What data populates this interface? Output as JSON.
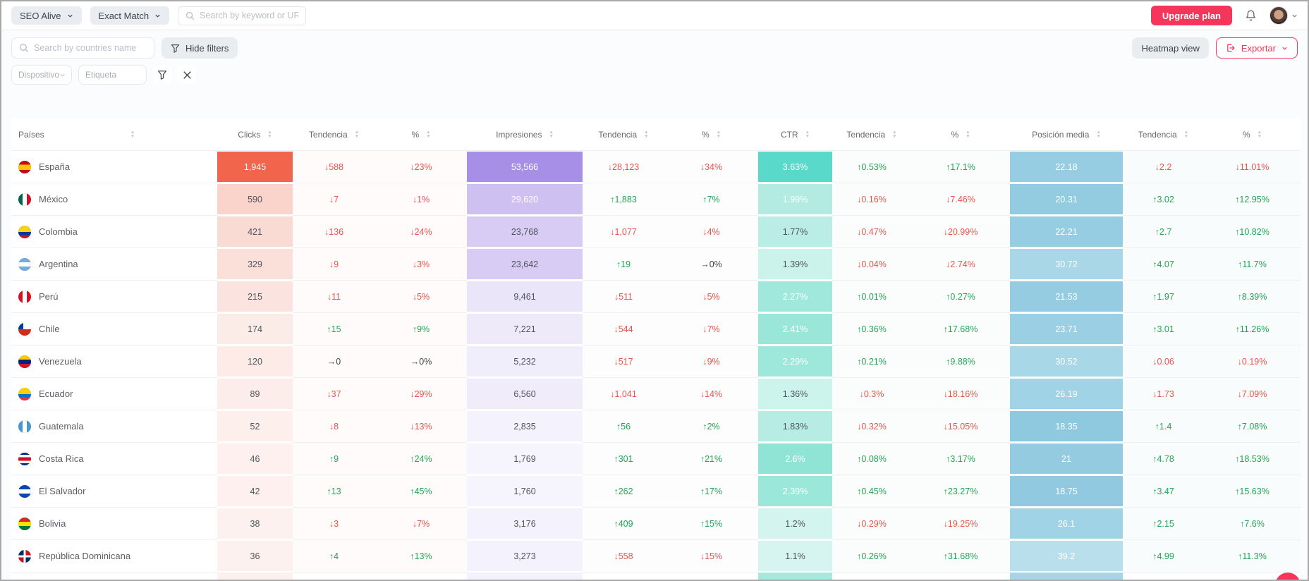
{
  "topbar": {
    "project": {
      "label": "SEO Alive"
    },
    "match_mode": {
      "label": "Exact Match"
    },
    "search": {
      "placeholder": "Search by keyword or URL"
    },
    "upgrade": {
      "label": "Upgrade plan"
    }
  },
  "toolbar": {
    "country_search": {
      "placeholder": "Search by countries name"
    },
    "hide_filters": {
      "label": "Hide filters"
    },
    "heatmap_view": {
      "label": "Heatmap view"
    },
    "export": {
      "label": "Exportar"
    }
  },
  "filters": {
    "device": {
      "placeholder": "Dispositivo"
    },
    "tag": {
      "placeholder": "Etiqueta"
    }
  },
  "colors": {
    "accent": "#f5365c",
    "positive": "#23a455",
    "negative": "#e6554f",
    "neutral": "#3f454b"
  },
  "table": {
    "columns": [
      "Países",
      "Clicks",
      "Tendencia",
      "%",
      "Impresiones",
      "Tendencia",
      "%",
      "CTR",
      "Tendencia",
      "%",
      "Posición media",
      "Tendencia",
      "%"
    ],
    "rows": [
      {
        "country": "España",
        "flag": "es",
        "cells": [
          {
            "t": "1,945",
            "bg": "#f0654b",
            "light": true
          },
          {
            "t": "↓588"
          },
          {
            "t": "↓23%"
          },
          {
            "t": "53,566",
            "bg": "#a78ee7",
            "light": true
          },
          {
            "t": "↓28,123"
          },
          {
            "t": "↓34%"
          },
          {
            "t": "3.63%",
            "bg": "#58d9ca",
            "light": true
          },
          {
            "t": "↑0.53%"
          },
          {
            "t": "↑17.1%"
          },
          {
            "t": "22.18",
            "bg": "#97cde2",
            "light": true
          },
          {
            "t": "↓2.2"
          },
          {
            "t": "↓11.01%"
          }
        ]
      },
      {
        "country": "México",
        "flag": "mx",
        "cells": [
          {
            "t": "590",
            "bg": "#fad3cb"
          },
          {
            "t": "↓7"
          },
          {
            "t": "↓1%"
          },
          {
            "t": "29,620",
            "bg": "#cfc0f2",
            "light": true
          },
          {
            "t": "↑1,883"
          },
          {
            "t": "↑7%"
          },
          {
            "t": "1.99%",
            "bg": "#b3ebe3",
            "light": true
          },
          {
            "t": "↓0.16%"
          },
          {
            "t": "↓7.46%"
          },
          {
            "t": "20.31",
            "bg": "#93cbe1",
            "light": true
          },
          {
            "t": "↑3.02"
          },
          {
            "t": "↑12.95%"
          }
        ]
      },
      {
        "country": "Colombia",
        "flag": "co",
        "cells": [
          {
            "t": "421",
            "bg": "#fadbd4"
          },
          {
            "t": "↓136"
          },
          {
            "t": "↓24%"
          },
          {
            "t": "23,768",
            "bg": "#d8cbf4"
          },
          {
            "t": "↓1,077"
          },
          {
            "t": "↓4%"
          },
          {
            "t": "1.77%",
            "bg": "#baede6"
          },
          {
            "t": "↓0.47%"
          },
          {
            "t": "↓20.99%"
          },
          {
            "t": "22.21",
            "bg": "#97cde2",
            "light": true
          },
          {
            "t": "↑2.7"
          },
          {
            "t": "↑10.82%"
          }
        ]
      },
      {
        "country": "Argentina",
        "flag": "ar",
        "cells": [
          {
            "t": "329",
            "bg": "#fbe0da"
          },
          {
            "t": "↓9"
          },
          {
            "t": "↓3%"
          },
          {
            "t": "23,642",
            "bg": "#d8ccf4"
          },
          {
            "t": "↑19"
          },
          {
            "t": "→0%"
          },
          {
            "t": "1.39%",
            "bg": "#ccf2ec"
          },
          {
            "t": "↓0.04%"
          },
          {
            "t": "↓2.74%"
          },
          {
            "t": "30.72",
            "bg": "#a9d7e8",
            "light": true
          },
          {
            "t": "↑4.07"
          },
          {
            "t": "↑11.7%"
          }
        ]
      },
      {
        "country": "Perú",
        "flag": "pe",
        "cells": [
          {
            "t": "215",
            "bg": "#fbe4df"
          },
          {
            "t": "↓11"
          },
          {
            "t": "↓5%"
          },
          {
            "t": "9,461",
            "bg": "#eae5f9"
          },
          {
            "t": "↓511"
          },
          {
            "t": "↓5%"
          },
          {
            "t": "2.27%",
            "bg": "#9fe8db",
            "light": true
          },
          {
            "t": "↑0.01%"
          },
          {
            "t": "↑0.27%"
          },
          {
            "t": "21.53",
            "bg": "#95cce1",
            "light": true
          },
          {
            "t": "↑1.97"
          },
          {
            "t": "↑8.39%"
          }
        ]
      },
      {
        "country": "Chile",
        "flag": "cl",
        "cells": [
          {
            "t": "174",
            "bg": "#fcece8"
          },
          {
            "t": "↑15"
          },
          {
            "t": "↑9%"
          },
          {
            "t": "7,221",
            "bg": "#eeeafa"
          },
          {
            "t": "↓544"
          },
          {
            "t": "↓7%"
          },
          {
            "t": "2.41%",
            "bg": "#9ae6d9",
            "light": true
          },
          {
            "t": "↑0.36%"
          },
          {
            "t": "↑17.68%"
          },
          {
            "t": "23.71",
            "bg": "#9bd0e4",
            "light": true
          },
          {
            "t": "↑3.01"
          },
          {
            "t": "↑11.26%"
          }
        ]
      },
      {
        "country": "Venezuela",
        "flag": "ve",
        "cells": [
          {
            "t": "120",
            "bg": "#fcebe7"
          },
          {
            "t": "→0"
          },
          {
            "t": "→0%"
          },
          {
            "t": "5,232",
            "bg": "#f1eefb"
          },
          {
            "t": "↓517"
          },
          {
            "t": "↓9%"
          },
          {
            "t": "2.29%",
            "bg": "#9ee7db",
            "light": true
          },
          {
            "t": "↑0.21%"
          },
          {
            "t": "↑9.88%"
          },
          {
            "t": "30.52",
            "bg": "#a8d7e8",
            "light": true
          },
          {
            "t": "↓0.06"
          },
          {
            "t": "↓0.19%"
          }
        ]
      },
      {
        "country": "Ecuador",
        "flag": "ec",
        "cells": [
          {
            "t": "89",
            "bg": "#fcedea"
          },
          {
            "t": "↓37"
          },
          {
            "t": "↓29%"
          },
          {
            "t": "6,560",
            "bg": "#f0ecfa"
          },
          {
            "t": "↓1,041"
          },
          {
            "t": "↓14%"
          },
          {
            "t": "1.36%",
            "bg": "#cdf3ed"
          },
          {
            "t": "↓0.3%"
          },
          {
            "t": "↓18.16%"
          },
          {
            "t": "26.19",
            "bg": "#a0d3e5",
            "light": true
          },
          {
            "t": "↓1.73"
          },
          {
            "t": "↓7.09%"
          }
        ]
      },
      {
        "country": "Guatemala",
        "flag": "gt",
        "cells": [
          {
            "t": "52",
            "bg": "#fdefec"
          },
          {
            "t": "↓8"
          },
          {
            "t": "↓13%"
          },
          {
            "t": "2,835",
            "bg": "#f4f2fc"
          },
          {
            "t": "↑56"
          },
          {
            "t": "↑2%"
          },
          {
            "t": "1.83%",
            "bg": "#b7ece4"
          },
          {
            "t": "↓0.32%"
          },
          {
            "t": "↓15.05%"
          },
          {
            "t": "18.35",
            "bg": "#8fc9df",
            "light": true
          },
          {
            "t": "↑1.4"
          },
          {
            "t": "↑7.08%"
          }
        ]
      },
      {
        "country": "Costa Rica",
        "flag": "cr",
        "cells": [
          {
            "t": "46",
            "bg": "#fdf0ee"
          },
          {
            "t": "↑9"
          },
          {
            "t": "↑24%"
          },
          {
            "t": "1,769",
            "bg": "#f6f4fc"
          },
          {
            "t": "↑301"
          },
          {
            "t": "↑21%"
          },
          {
            "t": "2.6%",
            "bg": "#8fe4d5",
            "light": true
          },
          {
            "t": "↑0.08%"
          },
          {
            "t": "↑3.17%"
          },
          {
            "t": "21",
            "bg": "#94cbe1",
            "light": true
          },
          {
            "t": "↑4.78"
          },
          {
            "t": "↑18.53%"
          }
        ]
      },
      {
        "country": "El Salvador",
        "flag": "sv",
        "cells": [
          {
            "t": "42",
            "bg": "#fdf0ee"
          },
          {
            "t": "↑13"
          },
          {
            "t": "↑45%"
          },
          {
            "t": "1,760",
            "bg": "#f6f4fc"
          },
          {
            "t": "↑262"
          },
          {
            "t": "↑17%"
          },
          {
            "t": "2.39%",
            "bg": "#9be7da",
            "light": true
          },
          {
            "t": "↑0.45%"
          },
          {
            "t": "↑23.27%"
          },
          {
            "t": "18.75",
            "bg": "#91cae0",
            "light": true
          },
          {
            "t": "↑3.47"
          },
          {
            "t": "↑15.63%"
          }
        ]
      },
      {
        "country": "Bolivia",
        "flag": "bo",
        "cells": [
          {
            "t": "38",
            "bg": "#fdf1ef"
          },
          {
            "t": "↓3"
          },
          {
            "t": "↓7%"
          },
          {
            "t": "3,176",
            "bg": "#f4f2fc"
          },
          {
            "t": "↑409"
          },
          {
            "t": "↑15%"
          },
          {
            "t": "1.2%",
            "bg": "#d3f4ef"
          },
          {
            "t": "↓0.29%"
          },
          {
            "t": "↓19.25%"
          },
          {
            "t": "26.1",
            "bg": "#a0d3e5",
            "light": true
          },
          {
            "t": "↑2.15"
          },
          {
            "t": "↑7.6%"
          }
        ]
      },
      {
        "country": "República Dominicana",
        "flag": "do",
        "cells": [
          {
            "t": "36",
            "bg": "#fdf1ef"
          },
          {
            "t": "↑4"
          },
          {
            "t": "↑13%"
          },
          {
            "t": "3,273",
            "bg": "#f4f2fc"
          },
          {
            "t": "↓558"
          },
          {
            "t": "↓15%"
          },
          {
            "t": "1.1%",
            "bg": "#d7f5f0"
          },
          {
            "t": "↑0.26%"
          },
          {
            "t": "↑31.68%"
          },
          {
            "t": "39.2",
            "bg": "#b9dfec",
            "light": true
          },
          {
            "t": "↑4.99"
          },
          {
            "t": "↑11.3%"
          }
        ]
      }
    ],
    "partial_row": {
      "clicks_bg": "#fdf1ef",
      "impressions_bg": "#f4f2fc",
      "ctr_bg": "#a5e8dc",
      "position_bg": "#a5d6e7"
    }
  }
}
